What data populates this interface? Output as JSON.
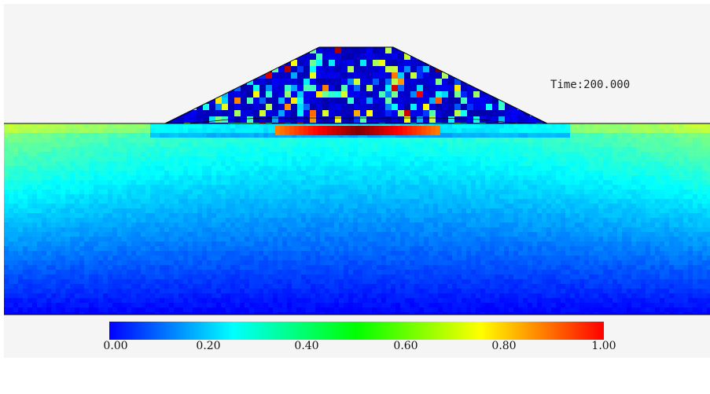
{
  "simulation": {
    "time_label": "Time:200.000"
  },
  "colorbar": {
    "tick_labels": [
      "0.00",
      "0.20",
      "0.40",
      "0.60",
      "0.80",
      "1.00"
    ],
    "range": [
      0,
      1
    ],
    "colormap": "jet",
    "stops": [
      "#0000ff",
      "#00ffff",
      "#00ff00",
      "#ffff00",
      "#ff0000"
    ]
  },
  "colors": {
    "background": "#f5f5f5",
    "outline": "#000000",
    "frame_accent": "#ffff99"
  }
}
